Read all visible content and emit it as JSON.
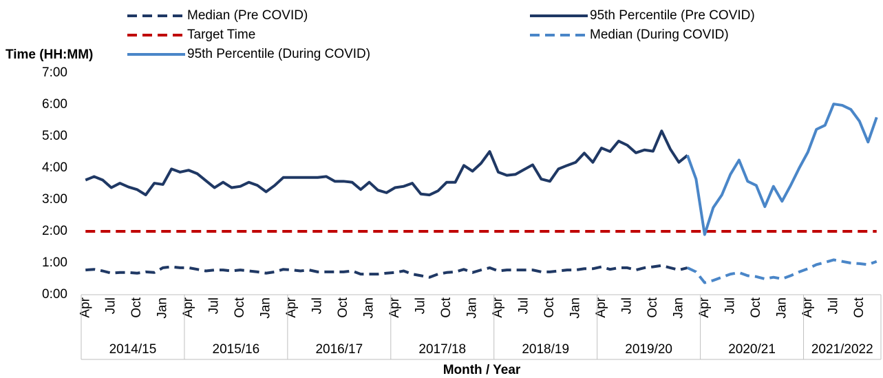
{
  "chart_data": {
    "type": "line",
    "y_label": "Time (HH:MM)",
    "x_label": "Month / Year",
    "categories": [
      "Apr",
      null,
      null,
      "Jul",
      null,
      null,
      "Oct",
      null,
      null,
      "Jan",
      null,
      null,
      "Apr",
      null,
      null,
      "Jul",
      null,
      null,
      "Oct",
      null,
      null,
      "Jan",
      null,
      null,
      "Apr",
      null,
      null,
      "Jul",
      null,
      null,
      "Oct",
      null,
      null,
      "Jan",
      null,
      null,
      "Apr",
      null,
      null,
      "Jul",
      null,
      null,
      "Oct",
      null,
      null,
      "Jan",
      null,
      null,
      "Apr",
      null,
      null,
      "Jul",
      null,
      null,
      "Oct",
      null,
      null,
      "Jan",
      null,
      null,
      "Apr",
      null,
      null,
      "Jul",
      null,
      null,
      "Oct",
      null,
      null,
      "Jan",
      null,
      null,
      "Apr",
      null,
      null,
      "Jul",
      null,
      null,
      "Oct",
      null,
      null,
      "Jan",
      null,
      null,
      "Apr",
      null,
      null,
      "Jul",
      null,
      null,
      "Oct",
      null,
      null
    ],
    "year_groups": [
      "2014/15",
      "2015/16",
      "2016/17",
      "2017/18",
      "2018/19",
      "2019/20",
      "2020/21",
      "2021/2022"
    ],
    "ylim": [
      0,
      7
    ],
    "yticks": [
      {
        "value": 0,
        "label": "0:00"
      },
      {
        "value": 1,
        "label": "1:00"
      },
      {
        "value": 2,
        "label": "2:00"
      },
      {
        "value": 3,
        "label": "3:00"
      },
      {
        "value": 4,
        "label": "4:00"
      },
      {
        "value": 5,
        "label": "5:00"
      },
      {
        "value": 6,
        "label": "6:00"
      },
      {
        "value": 7,
        "label": "7:00"
      }
    ],
    "grid": false,
    "series": [
      {
        "name": "Median (Pre COVID)",
        "color": "#1f3864",
        "style": "dashed",
        "values": [
          0.78,
          0.8,
          0.75,
          0.68,
          0.7,
          0.7,
          0.68,
          0.72,
          0.7,
          0.85,
          0.88,
          0.85,
          0.85,
          0.8,
          0.75,
          0.78,
          0.78,
          0.75,
          0.78,
          0.75,
          0.72,
          0.68,
          0.72,
          0.8,
          0.78,
          0.75,
          0.78,
          0.72,
          0.72,
          0.72,
          0.72,
          0.75,
          0.65,
          0.65,
          0.65,
          0.68,
          0.7,
          0.75,
          0.65,
          0.6,
          0.55,
          0.65,
          0.7,
          0.72,
          0.8,
          0.7,
          0.78,
          0.85,
          0.75,
          0.78,
          0.78,
          0.78,
          0.78,
          0.72,
          0.72,
          0.75,
          0.78,
          0.78,
          0.82,
          0.82,
          0.88,
          0.8,
          0.85,
          0.85,
          0.78,
          0.85,
          0.88,
          0.92,
          0.85,
          0.78,
          0.85,
          null,
          null,
          null,
          null,
          null,
          null,
          null,
          null,
          null,
          null,
          null,
          null,
          null,
          null,
          null,
          null,
          null,
          null,
          null,
          null,
          null,
          null
        ]
      },
      {
        "name": "95th Percentile (Pre COVID)",
        "color": "#1f3864",
        "style": "solid",
        "values": [
          3.62,
          3.73,
          3.62,
          3.38,
          3.52,
          3.4,
          3.32,
          3.15,
          3.52,
          3.48,
          3.97,
          3.87,
          3.93,
          3.82,
          3.6,
          3.38,
          3.55,
          3.38,
          3.42,
          3.55,
          3.45,
          3.25,
          3.45,
          3.7,
          3.7,
          3.7,
          3.7,
          3.7,
          3.73,
          3.58,
          3.58,
          3.55,
          3.32,
          3.55,
          3.3,
          3.22,
          3.38,
          3.42,
          3.52,
          3.18,
          3.15,
          3.28,
          3.55,
          3.55,
          4.08,
          3.9,
          4.15,
          4.52,
          3.87,
          3.77,
          3.8,
          3.95,
          4.1,
          3.65,
          3.58,
          3.97,
          4.08,
          4.18,
          4.47,
          4.18,
          4.63,
          4.52,
          4.85,
          4.72,
          4.48,
          4.57,
          4.53,
          5.17,
          4.6,
          4.18,
          4.4,
          null,
          null,
          null,
          null,
          null,
          null,
          null,
          null,
          null,
          null,
          null,
          null,
          null,
          null,
          null,
          null,
          null,
          null,
          null,
          null,
          null,
          null
        ]
      },
      {
        "name": "Target Time",
        "color": "#c00000",
        "style": "dashed",
        "values": [
          2,
          2,
          2,
          2,
          2,
          2,
          2,
          2,
          2,
          2,
          2,
          2,
          2,
          2,
          2,
          2,
          2,
          2,
          2,
          2,
          2,
          2,
          2,
          2,
          2,
          2,
          2,
          2,
          2,
          2,
          2,
          2,
          2,
          2,
          2,
          2,
          2,
          2,
          2,
          2,
          2,
          2,
          2,
          2,
          2,
          2,
          2,
          2,
          2,
          2,
          2,
          2,
          2,
          2,
          2,
          2,
          2,
          2,
          2,
          2,
          2,
          2,
          2,
          2,
          2,
          2,
          2,
          2,
          2,
          2,
          2,
          2,
          2,
          2,
          2,
          2,
          2,
          2,
          2,
          2,
          2,
          2,
          2,
          2,
          2,
          2,
          2,
          2,
          2,
          2,
          2,
          2,
          2
        ]
      },
      {
        "name": "Median (During COVID)",
        "color": "#4a86c8",
        "style": "dashed",
        "values": [
          null,
          null,
          null,
          null,
          null,
          null,
          null,
          null,
          null,
          null,
          null,
          null,
          null,
          null,
          null,
          null,
          null,
          null,
          null,
          null,
          null,
          null,
          null,
          null,
          null,
          null,
          null,
          null,
          null,
          null,
          null,
          null,
          null,
          null,
          null,
          null,
          null,
          null,
          null,
          null,
          null,
          null,
          null,
          null,
          null,
          null,
          null,
          null,
          null,
          null,
          null,
          null,
          null,
          null,
          null,
          null,
          null,
          null,
          null,
          null,
          null,
          null,
          null,
          null,
          null,
          null,
          null,
          null,
          null,
          null,
          0.85,
          0.72,
          0.38,
          0.45,
          0.55,
          0.65,
          0.7,
          0.6,
          0.57,
          0.5,
          0.55,
          0.5,
          0.6,
          0.72,
          0.82,
          0.95,
          1.02,
          1.1,
          1.05,
          1.0,
          0.98,
          0.95,
          1.05
        ]
      },
      {
        "name": "95th Percentile (During COVID)",
        "color": "#4a86c8",
        "style": "solid",
        "values": [
          null,
          null,
          null,
          null,
          null,
          null,
          null,
          null,
          null,
          null,
          null,
          null,
          null,
          null,
          null,
          null,
          null,
          null,
          null,
          null,
          null,
          null,
          null,
          null,
          null,
          null,
          null,
          null,
          null,
          null,
          null,
          null,
          null,
          null,
          null,
          null,
          null,
          null,
          null,
          null,
          null,
          null,
          null,
          null,
          null,
          null,
          null,
          null,
          null,
          null,
          null,
          null,
          null,
          null,
          null,
          null,
          null,
          null,
          null,
          null,
          null,
          null,
          null,
          null,
          null,
          null,
          null,
          null,
          null,
          null,
          4.4,
          3.65,
          1.9,
          2.75,
          3.15,
          3.8,
          4.25,
          3.58,
          3.45,
          2.78,
          3.42,
          2.95,
          3.45,
          4.0,
          4.5,
          5.22,
          5.35,
          6.02,
          5.98,
          5.85,
          5.48,
          4.82,
          5.6
        ]
      }
    ]
  }
}
